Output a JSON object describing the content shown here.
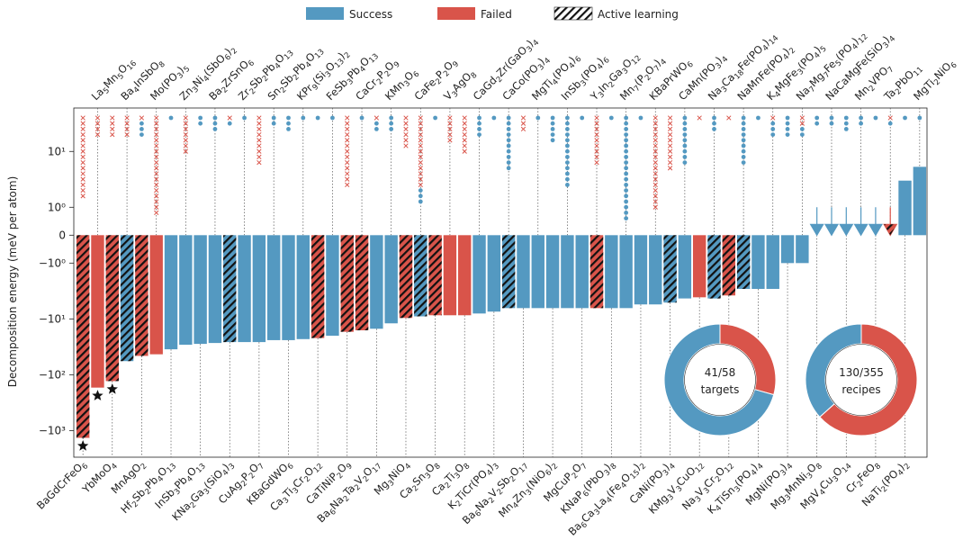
{
  "chart_data": {
    "type": "bar",
    "scale": "symlog",
    "ylabel": "Decomposition energy (meV per atom)",
    "legend": [
      {
        "name": "Success",
        "color": "#5499c1"
      },
      {
        "name": "Failed",
        "color": "#d9544a"
      },
      {
        "name": "Active learning"
      }
    ],
    "categories": [
      "BaGdCrFeO6",
      "La5Mn5O16",
      "YbMoO4",
      "Ba4InSbO8",
      "MnAgO2",
      "Mo(PO3)5",
      "Hf2Sb2Pb4O13",
      "Zn3Ni4(SbO6)2",
      "InSb3Pb4O13",
      "Ba2ZrSnO6",
      "KNa2Ga3(SiO4)3",
      "Zr2Sb2Pb4O13",
      "CuAg2P2O7",
      "Sn2Sb2Pb4O13",
      "KBaGdWO6",
      "KPr9(Si3O13)2",
      "Ca3Ti3Cr2O12",
      "FeSb3Pb4O13",
      "CaTiNiP2O9",
      "CaCr2P2O9",
      "Ba6Na2Ta2V2O17",
      "KMn3O6",
      "Mg3NiO4",
      "CaFe2P2O9",
      "Ca2Sn3O8",
      "V3AgO8",
      "Ca2Ti3O8",
      "CaGd2Zr(GaO3)4",
      "K2TiCr(PO4)3",
      "CaCo(PO3)4",
      "Ba6Na2V2Sb2O17",
      "MgTi4(PO4)6",
      "Mn4Zn3(NiO6)2",
      "InSb3(PO4)6",
      "MgCuP2O7",
      "Y3In2Ga3O12",
      "KNaP6(PbO3)8",
      "Mn7(P2O7)4",
      "Ba6Ca3La4(Fe4O15)2",
      "KBaPrWO6",
      "CaNi(PO3)4",
      "CaMn(PO3)4",
      "KMg3V3CuO12",
      "Na3Ca18Fe(PO4)14",
      "Na3V3Cr2O12",
      "NaMnFe(PO4)2",
      "K4TiSn3(PO4)4",
      "K4MgFe3(PO4)5",
      "MgNi(PO3)4",
      "Na7Mg7Fe5(PO4)12",
      "Mg3MnNi3O8",
      "NaCaMgFe(SiO3)4",
      "MgV4Cu3O14",
      "Mn2VPO7",
      "Cr2FeO8",
      "Ta2PbO11",
      "NaTi2(PO4)2",
      "MgTi2NiO6"
    ],
    "values": [
      -1350,
      -170,
      -130,
      -57,
      -46,
      -43,
      -35,
      -29,
      -28,
      -27,
      -26,
      -26,
      -26,
      -24,
      -24,
      -23,
      -22,
      -20,
      -17,
      -16,
      -15,
      -12,
      -9.6,
      -9,
      -8.6,
      -8.6,
      -8.6,
      -8,
      -7.4,
      -6.4,
      -6.4,
      -6.4,
      -6.4,
      -6.4,
      -6.4,
      -6.4,
      -6.4,
      -6.4,
      -5.5,
      -5.5,
      -5.1,
      -4.3,
      -4.1,
      -4.3,
      -3.8,
      -2.9,
      -2.9,
      -2.9,
      -1,
      -1,
      0,
      0,
      0,
      0,
      0,
      0,
      3,
      5.3
    ],
    "outcome": [
      1,
      1,
      1,
      0,
      1,
      1,
      0,
      0,
      0,
      0,
      0,
      0,
      0,
      0,
      0,
      0,
      1,
      0,
      1,
      1,
      0,
      0,
      1,
      0,
      1,
      1,
      1,
      0,
      0,
      0,
      0,
      0,
      0,
      0,
      0,
      1,
      0,
      0,
      0,
      0,
      0,
      0,
      1,
      0,
      1,
      0,
      0,
      0,
      0,
      0,
      0,
      0,
      0,
      0,
      0,
      1,
      0,
      0
    ],
    "active_learning": [
      true,
      false,
      true,
      true,
      true,
      false,
      false,
      false,
      false,
      false,
      true,
      false,
      false,
      false,
      false,
      false,
      true,
      false,
      true,
      true,
      false,
      false,
      true,
      true,
      true,
      false,
      false,
      false,
      false,
      true,
      false,
      false,
      false,
      false,
      false,
      true,
      false,
      false,
      false,
      false,
      true,
      false,
      false,
      true,
      true,
      true,
      false,
      false,
      false,
      false,
      false,
      false,
      false,
      false,
      false,
      true,
      false,
      false
    ],
    "starred": [
      0,
      1,
      2
    ],
    "failed_attempts": [
      15,
      4,
      4,
      4,
      1,
      18,
      0,
      7,
      0,
      0,
      1,
      0,
      9,
      0,
      0,
      0,
      0,
      0,
      13,
      0,
      1,
      0,
      6,
      13,
      0,
      5,
      7,
      0,
      0,
      0,
      3,
      0,
      0,
      0,
      0,
      9,
      0,
      0,
      0,
      17,
      10,
      0,
      1,
      0,
      1,
      0,
      0,
      1,
      0,
      2,
      0,
      0,
      0,
      0,
      0,
      1,
      0,
      0
    ],
    "success_attempts": [
      0,
      0,
      0,
      0,
      3,
      0,
      1,
      0,
      2,
      3,
      1,
      1,
      0,
      2,
      3,
      1,
      1,
      1,
      0,
      1,
      2,
      3,
      0,
      3,
      1,
      0,
      0,
      4,
      1,
      10,
      0,
      1,
      5,
      13,
      1,
      0,
      1,
      19,
      1,
      0,
      0,
      9,
      0,
      3,
      0,
      9,
      1,
      3,
      4,
      2,
      2,
      2,
      3,
      2,
      1,
      1,
      1,
      1
    ],
    "ylim": [
      -3000,
      60
    ],
    "yticks": [
      {
        "value": 10,
        "label": "10¹"
      },
      {
        "value": 1,
        "label": "10⁰"
      },
      0,
      {
        "value": -1,
        "label": "−10⁰"
      },
      {
        "value": -10,
        "label": "−10¹"
      },
      {
        "value": -100,
        "label": "−10²"
      },
      {
        "value": -1000,
        "label": "−10³"
      }
    ],
    "pies": [
      {
        "label": "41/58",
        "caption": "targets",
        "values": [
          41,
          17
        ]
      },
      {
        "label": "130/355",
        "caption": "recipes",
        "values": [
          130,
          225
        ]
      }
    ]
  }
}
